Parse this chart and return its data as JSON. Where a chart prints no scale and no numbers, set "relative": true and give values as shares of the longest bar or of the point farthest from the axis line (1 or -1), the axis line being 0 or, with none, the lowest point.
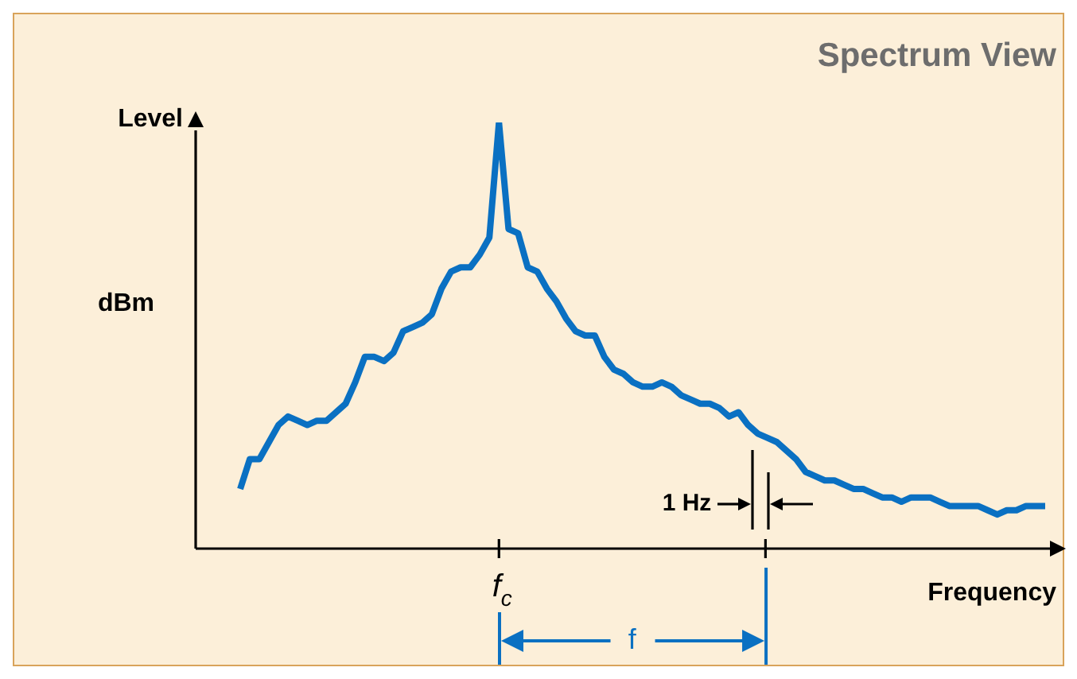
{
  "chart_data": {
    "type": "line",
    "title": "Spectrum View",
    "xlabel": "Frequency",
    "ylabel": "Level",
    "annotations": [
      "dBm",
      "f$_{c}$",
      "1 Hz",
      "f"
    ],
    "relative": true,
    "legend": false,
    "marker": "none",
    "line_style": "solid",
    "categories": [
      null,
      null,
      null,
      null,
      null,
      null,
      null,
      null,
      null,
      null,
      null,
      null,
      null,
      null,
      null,
      null,
      null,
      null,
      null,
      null,
      null,
      null,
      null,
      null,
      null,
      null,
      null,
      null,
      null,
      null,
      null,
      null,
      null,
      null,
      null,
      null,
      null,
      null,
      null,
      null,
      null,
      null,
      null,
      null,
      null,
      null,
      null,
      null,
      null,
      null,
      null,
      null,
      null,
      null,
      null,
      null,
      null,
      null,
      null,
      null,
      null,
      null,
      null,
      null,
      null,
      null,
      null,
      null,
      null,
      null,
      null,
      null,
      null,
      null,
      null,
      null,
      null,
      null,
      null,
      null,
      null,
      null,
      null,
      null,
      null
    ],
    "series": [
      {
        "color": "#0a70c2",
        "values": [
          0.14,
          0.21,
          0.21,
          0.25,
          0.29,
          0.31,
          0.3,
          0.29,
          0.3,
          0.3,
          0.32,
          0.34,
          0.39,
          0.45,
          0.45,
          0.44,
          0.46,
          0.51,
          0.52,
          0.53,
          0.55,
          0.61,
          0.65,
          0.66,
          0.66,
          0.69,
          0.73,
          1,
          0.75,
          0.74,
          0.66,
          0.65,
          0.61,
          0.58,
          0.54,
          0.51,
          0.5,
          0.5,
          0.45,
          0.42,
          0.41,
          0.39,
          0.38,
          0.38,
          0.39,
          0.38,
          0.36,
          0.35,
          0.34,
          0.34,
          0.33,
          0.31,
          0.32,
          0.29,
          0.27,
          0.26,
          0.25,
          0.23,
          0.21,
          0.18,
          0.17,
          0.16,
          0.16,
          0.15,
          0.14,
          0.14,
          0.13,
          0.12,
          0.12,
          0.11,
          0.12,
          0.12,
          0.12,
          0.11,
          0.1,
          0.1,
          0.1,
          0.1,
          0.09,
          0.08,
          0.09,
          0.09,
          0.1,
          0.1,
          0.1
        ]
      }
    ]
  }
}
